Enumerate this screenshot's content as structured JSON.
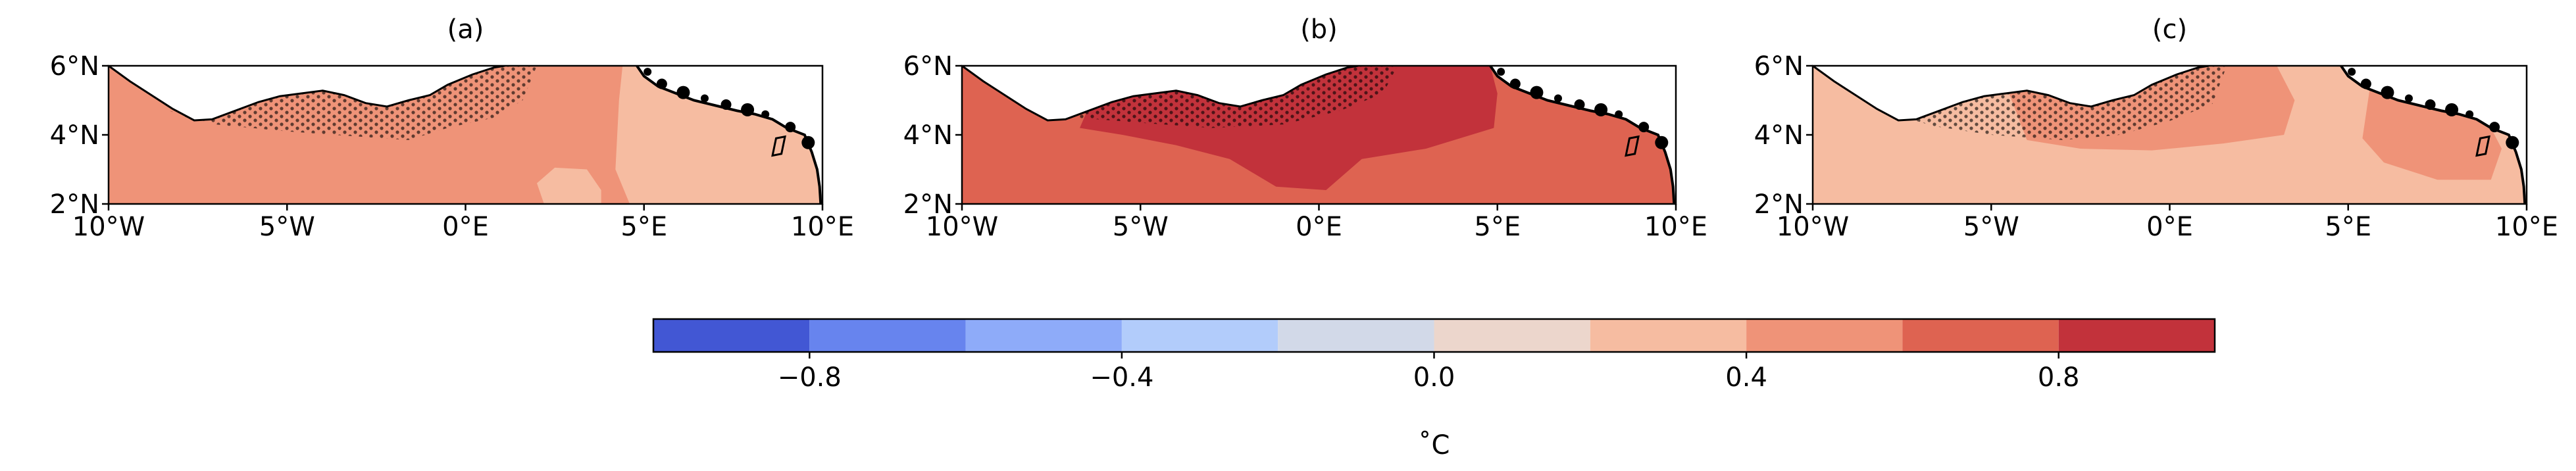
{
  "chart_data": {
    "type": "heatmap",
    "variable": "sea surface temperature difference",
    "unit_label": "˚C",
    "x_ticks": [
      "10°W",
      "5°W",
      "0°E",
      "5°E",
      "10°E"
    ],
    "y_ticks": [
      "2°N",
      "4°N",
      "6°N"
    ],
    "x_range_deg": [
      -10,
      10
    ],
    "y_range_deg": [
      2,
      6
    ],
    "colorbar": {
      "range": [
        -1.0,
        1.0
      ],
      "boundaries": [
        -1.0,
        -0.8,
        -0.6,
        -0.4,
        -0.2,
        0.0,
        0.2,
        0.4,
        0.6,
        0.8,
        1.0
      ],
      "colors": [
        "#4257d4",
        "#6784ee",
        "#8eabf9",
        "#b2ccfb",
        "#d2d9e8",
        "#ecd6cc",
        "#f6bca1",
        "#ef9378",
        "#de6351",
        "#c2323b"
      ],
      "tick_values": [
        -0.8,
        -0.4,
        0.0,
        0.4,
        0.8
      ],
      "tick_labels": [
        "−0.8",
        "−0.4",
        "0.0",
        "0.4",
        "0.8"
      ],
      "orientation": "horizontal",
      "placement": "bottom-center"
    },
    "panels": [
      {
        "label": "(a)",
        "background_value": 0.5,
        "regions": [
          {
            "name": "eastern-coastal-shelf",
            "value": 0.35
          },
          {
            "name": "central-southern-patch",
            "value": 0.35
          }
        ],
        "stippled_region": "coastal band 8°W–2°E, 3.8°N–6°N"
      },
      {
        "label": "(b)",
        "background_value": 0.7,
        "regions": [
          {
            "name": "central-warm-core",
            "value": 0.9
          }
        ],
        "stippled_region": "coastal band 6°W–2°E, 4°N–6°N"
      },
      {
        "label": "(c)",
        "background_value": 0.3,
        "regions": [
          {
            "name": "central-warmer-band",
            "value": 0.45
          },
          {
            "name": "eastern-warmer-band",
            "value": 0.45
          }
        ],
        "stippled_region": "coastal band 7°W–1°E, 3.8°N–6°N"
      }
    ]
  }
}
